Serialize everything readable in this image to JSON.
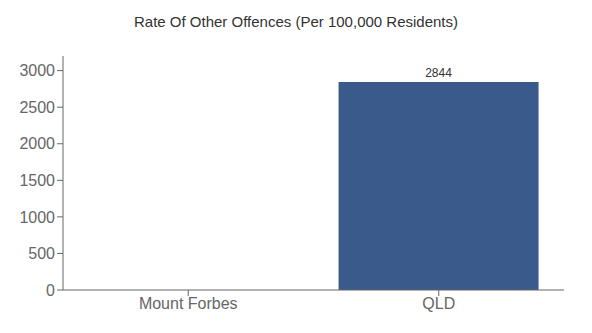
{
  "chart_data": {
    "type": "bar",
    "title": "Rate Of Other Offences (Per 100,000 Residents)",
    "categories": [
      "Mount Forbes",
      "QLD"
    ],
    "values": [
      0,
      2844
    ],
    "color": "#3a5a8c",
    "ylim": [
      0,
      3200
    ],
    "yticks": [
      0,
      500,
      1000,
      1500,
      2000,
      2500,
      3000
    ],
    "grid": false,
    "data_labels": true
  }
}
